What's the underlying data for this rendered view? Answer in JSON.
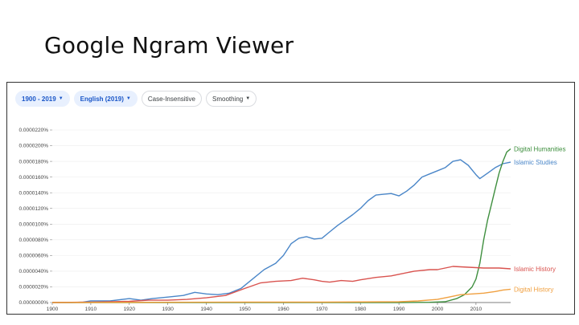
{
  "slide": {
    "title": "Google Ngram Viewer"
  },
  "toolbar": {
    "year_range": "1900 - 2019",
    "corpus": "English (2019)",
    "case": "Case-Insensitive",
    "smoothing": "Smoothing"
  },
  "icons": {
    "dropdown": "caret-down-icon"
  },
  "chart_data": {
    "type": "line",
    "xlim": [
      1900,
      2019
    ],
    "ylim": [
      0,
      2.2e-07
    ],
    "x_ticks": [
      1900,
      1910,
      1920,
      1930,
      1940,
      1950,
      1960,
      1970,
      1980,
      1990,
      2000,
      2010
    ],
    "y_ticks": [
      0,
      2e-08,
      4e-08,
      6e-08,
      8e-08,
      1e-07,
      1.2e-07,
      1.4e-07,
      1.6e-07,
      1.8e-07,
      2e-07,
      2.2e-07
    ],
    "y_tick_labels": [
      "0.0000000%",
      "0.0000020%",
      "0.0000040%",
      "0.0000060%",
      "0.0000080%",
      "0.0000100%",
      "0.0000120%",
      "0.0000140%",
      "0.0000160%",
      "0.0000180%",
      "0.0000200%",
      "0.0000220%"
    ],
    "grid": "horizontal",
    "series": [
      {
        "name": "Islamic Studies",
        "color": "#4a86c8",
        "x": [
          1900,
          1905,
          1908,
          1910,
          1915,
          1920,
          1923,
          1926,
          1930,
          1934,
          1937,
          1940,
          1943,
          1946,
          1949,
          1952,
          1955,
          1958,
          1960,
          1962,
          1964,
          1966,
          1968,
          1970,
          1972,
          1974,
          1976,
          1978,
          1980,
          1982,
          1984,
          1986,
          1988,
          1990,
          1992,
          1994,
          1996,
          1998,
          2000,
          2002,
          2004,
          2006,
          2008,
          2010,
          2011,
          2013,
          2015,
          2017,
          2019
        ],
        "values": [
          0,
          0,
          5e-10,
          2e-09,
          2e-09,
          5e-09,
          3e-09,
          5e-09,
          7e-09,
          9e-09,
          1.3e-08,
          1.1e-08,
          1e-08,
          1.2e-08,
          1.8e-08,
          3e-08,
          4.2e-08,
          5e-08,
          6e-08,
          7.5e-08,
          8.2e-08,
          8.4e-08,
          8.1e-08,
          8.2e-08,
          9e-08,
          9.8e-08,
          1.05e-07,
          1.12e-07,
          1.2e-07,
          1.3e-07,
          1.37e-07,
          1.38e-07,
          1.39e-07,
          1.36e-07,
          1.42e-07,
          1.5e-07,
          1.6e-07,
          1.64e-07,
          1.68e-07,
          1.72e-07,
          1.8e-07,
          1.82e-07,
          1.75e-07,
          1.63e-07,
          1.58e-07,
          1.65e-07,
          1.72e-07,
          1.77e-07,
          1.79e-07
        ]
      },
      {
        "name": "Digital Humanities",
        "color": "#3f8f3f",
        "x": [
          1900,
          1990,
          1998,
          2002,
          2005,
          2007,
          2009,
          2010,
          2011,
          2012,
          2013,
          2014,
          2015,
          2016,
          2017,
          2018,
          2019
        ],
        "values": [
          0,
          0,
          3e-10,
          1e-09,
          5e-09,
          1e-08,
          2e-08,
          3e-08,
          5e-08,
          8e-08,
          1.05e-07,
          1.25e-07,
          1.45e-07,
          1.65e-07,
          1.8e-07,
          1.92e-07,
          1.96e-07
        ]
      },
      {
        "name": "Islamic History",
        "color": "#d9534f",
        "x": [
          1900,
          1910,
          1920,
          1925,
          1930,
          1935,
          1940,
          1945,
          1950,
          1954,
          1958,
          1962,
          1965,
          1968,
          1970,
          1972,
          1975,
          1978,
          1980,
          1984,
          1988,
          1990,
          1994,
          1998,
          2000,
          2004,
          2008,
          2012,
          2016,
          2019
        ],
        "values": [
          0,
          5e-10,
          1.5e-09,
          3e-09,
          3e-09,
          4e-09,
          6e-09,
          9e-09,
          1.8e-08,
          2.5e-08,
          2.7e-08,
          2.8e-08,
          3.1e-08,
          2.9e-08,
          2.7e-08,
          2.6e-08,
          2.8e-08,
          2.7e-08,
          2.9e-08,
          3.2e-08,
          3.4e-08,
          3.6e-08,
          4e-08,
          4.2e-08,
          4.2e-08,
          4.6e-08,
          4.5e-08,
          4.4e-08,
          4.4e-08,
          4.3e-08
        ]
      },
      {
        "name": "Digital History",
        "color": "#f0a040",
        "x": [
          1900,
          1950,
          1970,
          1990,
          1995,
          2000,
          2003,
          2006,
          2009,
          2012,
          2015,
          2017,
          2019
        ],
        "values": [
          0,
          5e-10,
          5e-10,
          1e-09,
          2e-09,
          4e-09,
          7e-09,
          1e-08,
          1.1e-08,
          1.2e-08,
          1.4e-08,
          1.6e-08,
          1.7e-08
        ]
      }
    ]
  }
}
